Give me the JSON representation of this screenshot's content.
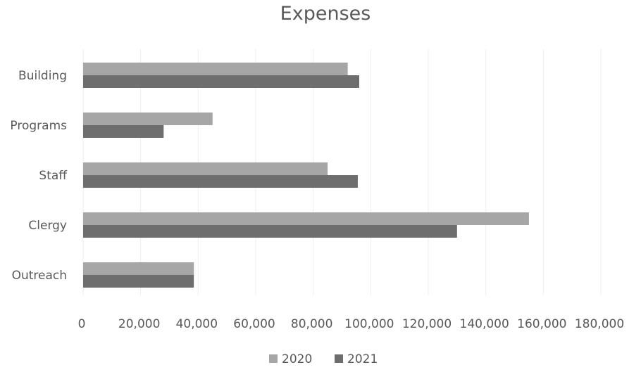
{
  "chart_data": {
    "type": "bar",
    "orientation": "horizontal",
    "title": "Expenses",
    "categories": [
      "Building",
      "Programs",
      "Staff",
      "Clergy",
      "Outreach"
    ],
    "series": [
      {
        "name": "2020",
        "color": "#a6a6a6",
        "values": [
          92000,
          45000,
          85000,
          155000,
          38500
        ]
      },
      {
        "name": "2021",
        "color": "#6e6e6e",
        "values": [
          96000,
          28000,
          95500,
          130000,
          38500
        ]
      }
    ],
    "xlim": [
      0,
      180000
    ],
    "xticks": [
      "0",
      "20,000",
      "40,000",
      "60,000",
      "80,000",
      "100,000",
      "120,000",
      "140,000",
      "160,000",
      "180,000"
    ],
    "grid": true,
    "legend": "bottom"
  }
}
